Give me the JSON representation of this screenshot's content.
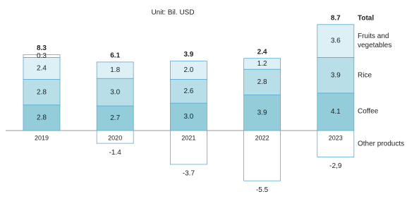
{
  "chart_data": {
    "type": "stacked-bar",
    "title": "Unit: Bil. USD",
    "categories": [
      "2019",
      "2020",
      "2021",
      "2022",
      "2023"
    ],
    "series": [
      {
        "name": "Coffee",
        "color": "#92cdd9",
        "values": [
          2.8,
          2.7,
          3.0,
          3.9,
          4.1
        ],
        "value_labels": [
          "2.8",
          "2.7",
          "3.0",
          "3.9",
          "4.1"
        ]
      },
      {
        "name": "Rice",
        "color": "#b8dfe8",
        "values": [
          2.8,
          3.0,
          2.6,
          2.8,
          3.9
        ],
        "value_labels": [
          "2.8",
          "3.0",
          "2.6",
          "2.8",
          "3.9"
        ]
      },
      {
        "name": "Fruits and vegetables",
        "color": "#dcf0f5",
        "values": [
          2.4,
          1.8,
          2.0,
          1.2,
          3.6
        ],
        "value_labels": [
          "2.4",
          "1.8",
          "2.0",
          "1.2",
          "3.6"
        ]
      },
      {
        "name": "Other products",
        "color": "#ffffff",
        "values": [
          0.3,
          -1.4,
          -3.7,
          -5.5,
          -2.9
        ],
        "value_labels": [
          "0.3",
          "-1.4",
          "-3.7",
          "-5.5",
          "-2,9"
        ]
      }
    ],
    "totals": {
      "name": "Total",
      "values": [
        8.3,
        6.1,
        3.9,
        2.4,
        8.7
      ]
    }
  }
}
